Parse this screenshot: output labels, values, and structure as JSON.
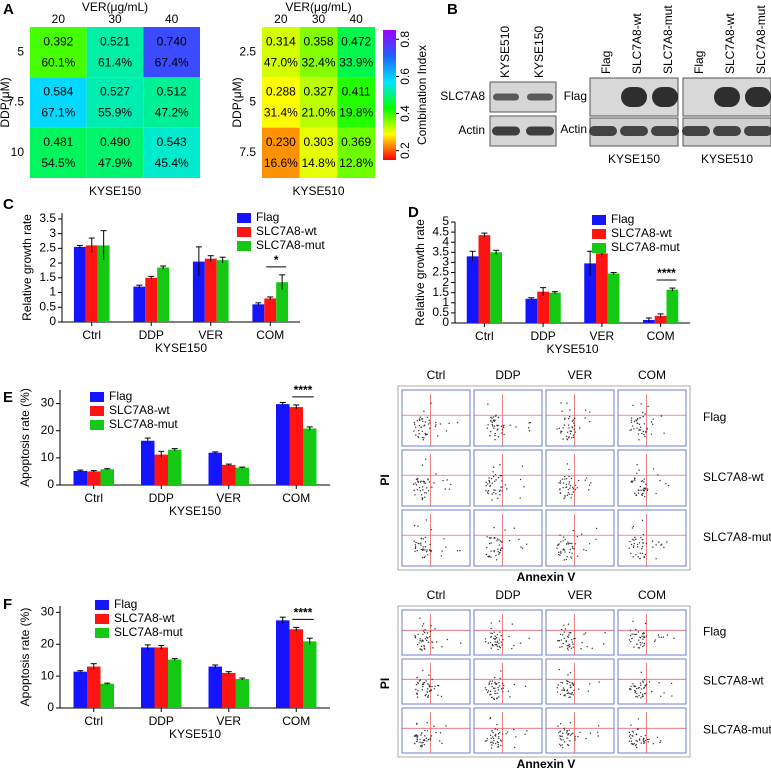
{
  "chart_data": [
    {
      "type": "heatmap",
      "panel": "A",
      "x_title": "VER(μg/mL)",
      "y_title": "DDP(μM)",
      "xlabel": "KYSE150",
      "x": [
        20,
        30,
        40
      ],
      "y": [
        5,
        7.5,
        10
      ],
      "values": [
        [
          0.392,
          0.521,
          0.74
        ],
        [
          0.584,
          0.527,
          0.512
        ],
        [
          0.481,
          0.49,
          0.543
        ]
      ],
      "value_labels": [
        [
          "0.392",
          "0.521",
          "0.740"
        ],
        [
          "0.584",
          "0.527",
          "0.512"
        ],
        [
          "0.481",
          "0.490",
          "0.543"
        ]
      ],
      "inhibition": [
        [
          60.1,
          61.4,
          67.4
        ],
        [
          67.1,
          55.9,
          47.2
        ],
        [
          54.5,
          47.9,
          45.4
        ]
      ],
      "inhibition_labels": [
        [
          "60.1%",
          "61.4%",
          "67.4%"
        ],
        [
          "67.1%",
          "55.9%",
          "47.2%"
        ],
        [
          "54.5%",
          "47.9%",
          "45.4%"
        ]
      ]
    },
    {
      "type": "heatmap",
      "x_title": "VER(μg/mL)",
      "y_title": "DDP(μM)",
      "xlabel": "KYSE510",
      "x": [
        20,
        30,
        40
      ],
      "y": [
        2.5,
        5,
        7.5
      ],
      "values": [
        [
          0.314,
          0.358,
          0.472
        ],
        [
          0.288,
          0.327,
          0.411
        ],
        [
          0.23,
          0.303,
          0.369
        ]
      ],
      "value_labels": [
        [
          "0.314",
          "0.358",
          "0.472"
        ],
        [
          "0.288",
          "0.327",
          "0.411"
        ],
        [
          "0.230",
          "0.303",
          "0.369"
        ]
      ],
      "inhibition": [
        [
          47.0,
          32.4,
          33.9
        ],
        [
          31.4,
          21.0,
          19.8
        ],
        [
          16.6,
          14.8,
          12.8
        ]
      ],
      "inhibition_labels": [
        [
          "47.0%",
          "32.4%",
          "33.9%"
        ],
        [
          "31.4%",
          "21.0%",
          "19.8%"
        ],
        [
          "16.6%",
          "14.8%",
          "12.8%"
        ]
      ],
      "colorbar_label": "Combination Index",
      "zlim": [
        0.15,
        0.85
      ],
      "zticks": [
        {
          "value": 0.2,
          "label": "0.2"
        },
        {
          "value": 0.4,
          "label": "0.4"
        },
        {
          "value": 0.6,
          "label": "0.6"
        },
        {
          "value": 0.8,
          "label": "0.8"
        }
      ],
      "colormap": [
        "#ff0000",
        "#ffff00",
        "#00ff00",
        "#00e5ff",
        "#2060ff",
        "#a000ff"
      ]
    },
    {
      "type": "bar",
      "panel": "C",
      "ylabel": "Relative growth rate",
      "xlabel": "KYSE150",
      "categories": [
        "Ctrl",
        "DDP",
        "VER",
        "COM"
      ],
      "series": [
        {
          "name": "Flag",
          "color": "#1414ff",
          "values": [
            2.55,
            1.2,
            2.05,
            0.6
          ],
          "errors": [
            0.05,
            0.05,
            0.5,
            0.05
          ]
        },
        {
          "name": "SLC7A8-wt",
          "color": "#ff1414",
          "values": [
            2.6,
            1.5,
            2.15,
            0.8
          ],
          "errors": [
            0.25,
            0.05,
            0.1,
            0.05
          ]
        },
        {
          "name": "SLC7A8-mut",
          "color": "#14c814",
          "values": [
            2.6,
            1.85,
            2.1,
            1.35
          ],
          "errors": [
            0.5,
            0.05,
            0.1,
            0.25
          ]
        }
      ],
      "ylim": [
        0,
        3.7
      ],
      "yticks": [
        0,
        {
          "value": 0.5,
          "label": "0.5"
        },
        1,
        {
          "value": 1.5,
          "label": "1.5"
        },
        2,
        {
          "value": 2.5,
          "label": "2.5"
        },
        3,
        {
          "value": 3.5,
          "label": "3.5"
        }
      ],
      "annotation": "*"
    },
    {
      "type": "bar",
      "panel": "D",
      "ylabel": "Relative growth rate",
      "xlabel": "KYSE510",
      "categories": [
        "Ctrl",
        "DDP",
        "VER",
        "COM"
      ],
      "series": [
        {
          "name": "Flag",
          "color": "#1414ff",
          "values": [
            3.3,
            1.2,
            2.95,
            0.15
          ],
          "errors": [
            0.25,
            0.05,
            0.6,
            0.1
          ]
        },
        {
          "name": "SLC7A8-wt",
          "color": "#ff1414",
          "values": [
            4.35,
            1.55,
            3.45,
            0.35
          ],
          "errors": [
            0.1,
            0.2,
            0.15,
            0.1
          ]
        },
        {
          "name": "SLC7A8-mut",
          "color": "#14c814",
          "values": [
            3.5,
            1.5,
            2.45,
            1.65
          ],
          "errors": [
            0.1,
            0.05,
            0.05,
            0.08
          ]
        }
      ],
      "ylim": [
        0,
        5
      ],
      "yticks": [
        0,
        {
          "value": 0.5,
          "label": "0.5"
        },
        1,
        {
          "value": 1.5,
          "label": "1.5"
        },
        2,
        {
          "value": 2.5,
          "label": "2.5"
        },
        3,
        {
          "value": 3.5,
          "label": "3.5"
        },
        4,
        {
          "value": 4.5,
          "label": "4.5"
        },
        5
      ],
      "annotation": "****"
    },
    {
      "type": "bar",
      "panel": "E",
      "ylabel": "Apoptosis rate (%)",
      "xlabel": "KYSE150",
      "categories": [
        "Ctrl",
        "DDP",
        "VER",
        "COM"
      ],
      "series": [
        {
          "name": "Flag",
          "color": "#1414ff",
          "values": [
            5.2,
            16.3,
            11.9,
            29.8
          ],
          "errors": [
            0.3,
            1.0,
            0.3,
            0.6
          ]
        },
        {
          "name": "SLC7A8-wt",
          "color": "#ff1414",
          "values": [
            5.0,
            11.2,
            7.4,
            28.7
          ],
          "errors": [
            0.3,
            1.2,
            0.3,
            0.8
          ]
        },
        {
          "name": "SLC7A8-mut",
          "color": "#14c814",
          "values": [
            5.8,
            13.0,
            6.4,
            20.8
          ],
          "errors": [
            0.2,
            0.4,
            0.2,
            0.6
          ]
        }
      ],
      "ylim": [
        0,
        35
      ],
      "yticks": [
        0,
        10,
        20,
        30
      ],
      "annotation": "****"
    },
    {
      "type": "bar",
      "panel": "F",
      "ylabel": "Apoptosis rate (%)",
      "xlabel": "KYSE510",
      "categories": [
        "Ctrl",
        "DDP",
        "VER",
        "COM"
      ],
      "series": [
        {
          "name": "Flag",
          "color": "#1414ff",
          "values": [
            11.4,
            19.0,
            13.0,
            27.5
          ],
          "errors": [
            0.3,
            0.8,
            0.5,
            1.0
          ]
        },
        {
          "name": "SLC7A8-wt",
          "color": "#ff1414",
          "values": [
            13.0,
            19.0,
            11.0,
            24.7
          ],
          "errors": [
            0.9,
            0.6,
            0.4,
            0.6
          ]
        },
        {
          "name": "SLC7A8-mut",
          "color": "#14c814",
          "values": [
            7.6,
            15.2,
            9.1,
            20.9
          ],
          "errors": [
            0.2,
            0.3,
            0.3,
            1.0
          ]
        }
      ],
      "ylim": [
        0,
        32
      ],
      "yticks": [
        0,
        10,
        20,
        30
      ],
      "annotation": "****"
    }
  ],
  "blots": {
    "panel": "B",
    "left": {
      "columns": [
        "KYSE510",
        "KYSE150"
      ],
      "rows": [
        "SLC7A8",
        "Actin"
      ]
    },
    "right": {
      "rows": [
        "Flag",
        "Actin"
      ],
      "groups": [
        {
          "columns": [
            "Flag",
            "SLC7A8-wt",
            "SLC7A8-mut"
          ],
          "label": "KYSE150"
        },
        {
          "columns": [
            "Flag",
            "SLC7A8-wt",
            "SLC7A8-mut"
          ],
          "label": "KYSE510"
        }
      ]
    }
  },
  "flow": [
    {
      "columns": [
        "Ctrl",
        "DDP",
        "VER",
        "COM"
      ],
      "rows": [
        "Flag",
        "SLC7A8-wt",
        "SLC7A8-mut"
      ],
      "y_label": "PI",
      "x_label": "Annexin V"
    },
    {
      "columns": [
        "Ctrl",
        "DDP",
        "VER",
        "COM"
      ],
      "rows": [
        "Flag",
        "SLC7A8-wt",
        "SLC7A8-mut"
      ],
      "y_label": "PI",
      "x_label": "Annexin V"
    }
  ]
}
